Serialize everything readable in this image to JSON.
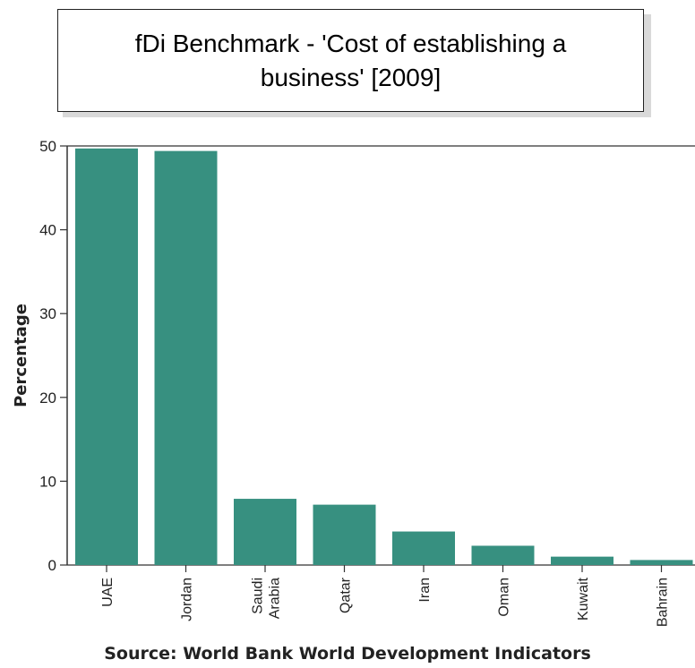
{
  "chart_data": {
    "type": "bar",
    "title": "fDi Benchmark - 'Cost of establishing a business' [2009]",
    "categories": [
      "UAE",
      "Jordan",
      "Saudi Arabia",
      "Qatar",
      "Iran",
      "Oman",
      "Kuwait",
      "Bahrain"
    ],
    "category_lines": [
      [
        "UAE"
      ],
      [
        "Jordan"
      ],
      [
        "Saudi",
        "Arabia"
      ],
      [
        "Qatar"
      ],
      [
        "Iran"
      ],
      [
        "Oman"
      ],
      [
        "Kuwait"
      ],
      [
        "Bahrain"
      ]
    ],
    "values": [
      49.7,
      49.4,
      7.9,
      7.2,
      4.0,
      2.3,
      1.0,
      0.6
    ],
    "ylabel": "Percentage",
    "xlabel": "",
    "ylim": [
      0,
      50
    ],
    "yticks": [
      0,
      10,
      20,
      30,
      40,
      50
    ],
    "bar_color": "#379080",
    "grid": false,
    "legend": "none"
  },
  "source": "Source: World Bank World Development Indicators"
}
